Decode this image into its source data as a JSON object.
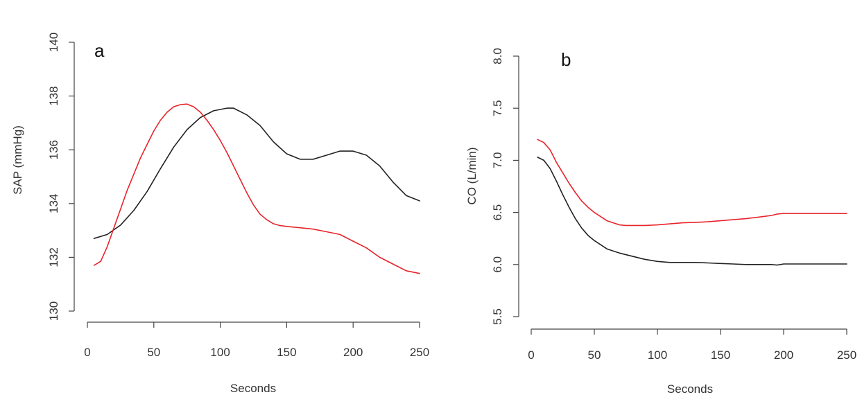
{
  "chart_data": [
    {
      "type": "line",
      "panel_label": "a",
      "xlabel": "Seconds",
      "ylabel": "SAP (mmHg)",
      "xlim": [
        0,
        250
      ],
      "ylim": [
        130,
        140
      ],
      "x_ticks": [
        0,
        50,
        100,
        150,
        200,
        250
      ],
      "y_ticks": [
        130,
        132,
        134,
        136,
        138,
        140
      ],
      "grid": false,
      "series": [
        {
          "color": "#222222",
          "x": [
            5,
            15,
            25,
            35,
            45,
            55,
            65,
            75,
            85,
            95,
            105,
            110,
            120,
            130,
            140,
            150,
            160,
            170,
            180,
            190,
            200,
            210,
            220,
            230,
            240,
            250
          ],
          "y": [
            132.7,
            132.85,
            133.2,
            133.75,
            134.45,
            135.3,
            136.1,
            136.75,
            137.2,
            137.45,
            137.55,
            137.55,
            137.3,
            136.9,
            136.3,
            135.85,
            135.65,
            135.65,
            135.8,
            135.95,
            135.95,
            135.8,
            135.4,
            134.8,
            134.3,
            134.1
          ]
        },
        {
          "color": "#e8242b",
          "x": [
            5,
            10,
            15,
            20,
            25,
            30,
            35,
            40,
            45,
            50,
            55,
            60,
            65,
            70,
            75,
            80,
            85,
            90,
            95,
            100,
            105,
            110,
            115,
            120,
            125,
            130,
            135,
            140,
            145,
            150,
            160,
            170,
            180,
            190,
            200,
            210,
            220,
            230,
            240,
            250
          ],
          "y": [
            131.7,
            131.85,
            132.4,
            133.1,
            133.8,
            134.5,
            135.1,
            135.7,
            136.2,
            136.7,
            137.1,
            137.4,
            137.6,
            137.68,
            137.7,
            137.6,
            137.4,
            137.1,
            136.75,
            136.35,
            135.9,
            135.4,
            134.9,
            134.4,
            133.95,
            133.6,
            133.4,
            133.25,
            133.18,
            133.15,
            133.1,
            133.05,
            132.95,
            132.85,
            132.6,
            132.35,
            132.0,
            131.75,
            131.5,
            131.4
          ]
        }
      ]
    },
    {
      "type": "line",
      "panel_label": "b",
      "xlabel": "Seconds",
      "ylabel": "CO (L/min)",
      "xlim": [
        0,
        250
      ],
      "ylim": [
        5.5,
        8.0
      ],
      "x_ticks": [
        0,
        50,
        100,
        150,
        200,
        250
      ],
      "y_ticks": [
        5.5,
        6.0,
        6.5,
        7.0,
        7.5,
        8.0
      ],
      "y_tick_labels": [
        "5.5",
        "6.0",
        "6.5",
        "7.0",
        "7.5",
        "8.0"
      ],
      "grid": false,
      "series": [
        {
          "color": "#222222",
          "x": [
            5,
            10,
            15,
            20,
            25,
            30,
            35,
            40,
            45,
            50,
            55,
            60,
            70,
            80,
            90,
            100,
            110,
            120,
            130,
            140,
            150,
            160,
            170,
            180,
            190,
            195,
            200,
            210,
            220,
            230,
            240,
            250
          ],
          "y": [
            7.03,
            7.0,
            6.92,
            6.8,
            6.67,
            6.55,
            6.44,
            6.35,
            6.28,
            6.23,
            6.19,
            6.15,
            6.11,
            6.08,
            6.05,
            6.03,
            6.02,
            6.02,
            6.02,
            6.015,
            6.01,
            6.005,
            6.0,
            6.0,
            6.0,
            5.995,
            6.005,
            6.005,
            6.005,
            6.005,
            6.005,
            6.005
          ]
        },
        {
          "color": "#e8242b",
          "x": [
            5,
            10,
            15,
            20,
            25,
            30,
            35,
            40,
            45,
            50,
            55,
            60,
            65,
            70,
            75,
            80,
            90,
            100,
            110,
            120,
            130,
            140,
            150,
            160,
            170,
            180,
            190,
            195,
            200,
            210,
            220,
            230,
            240,
            250
          ],
          "y": [
            7.2,
            7.17,
            7.1,
            6.98,
            6.88,
            6.78,
            6.69,
            6.61,
            6.55,
            6.5,
            6.46,
            6.42,
            6.4,
            6.38,
            6.375,
            6.375,
            6.375,
            6.38,
            6.39,
            6.4,
            6.405,
            6.41,
            6.42,
            6.43,
            6.44,
            6.455,
            6.47,
            6.485,
            6.49,
            6.49,
            6.49,
            6.49,
            6.49,
            6.49
          ]
        }
      ]
    }
  ]
}
